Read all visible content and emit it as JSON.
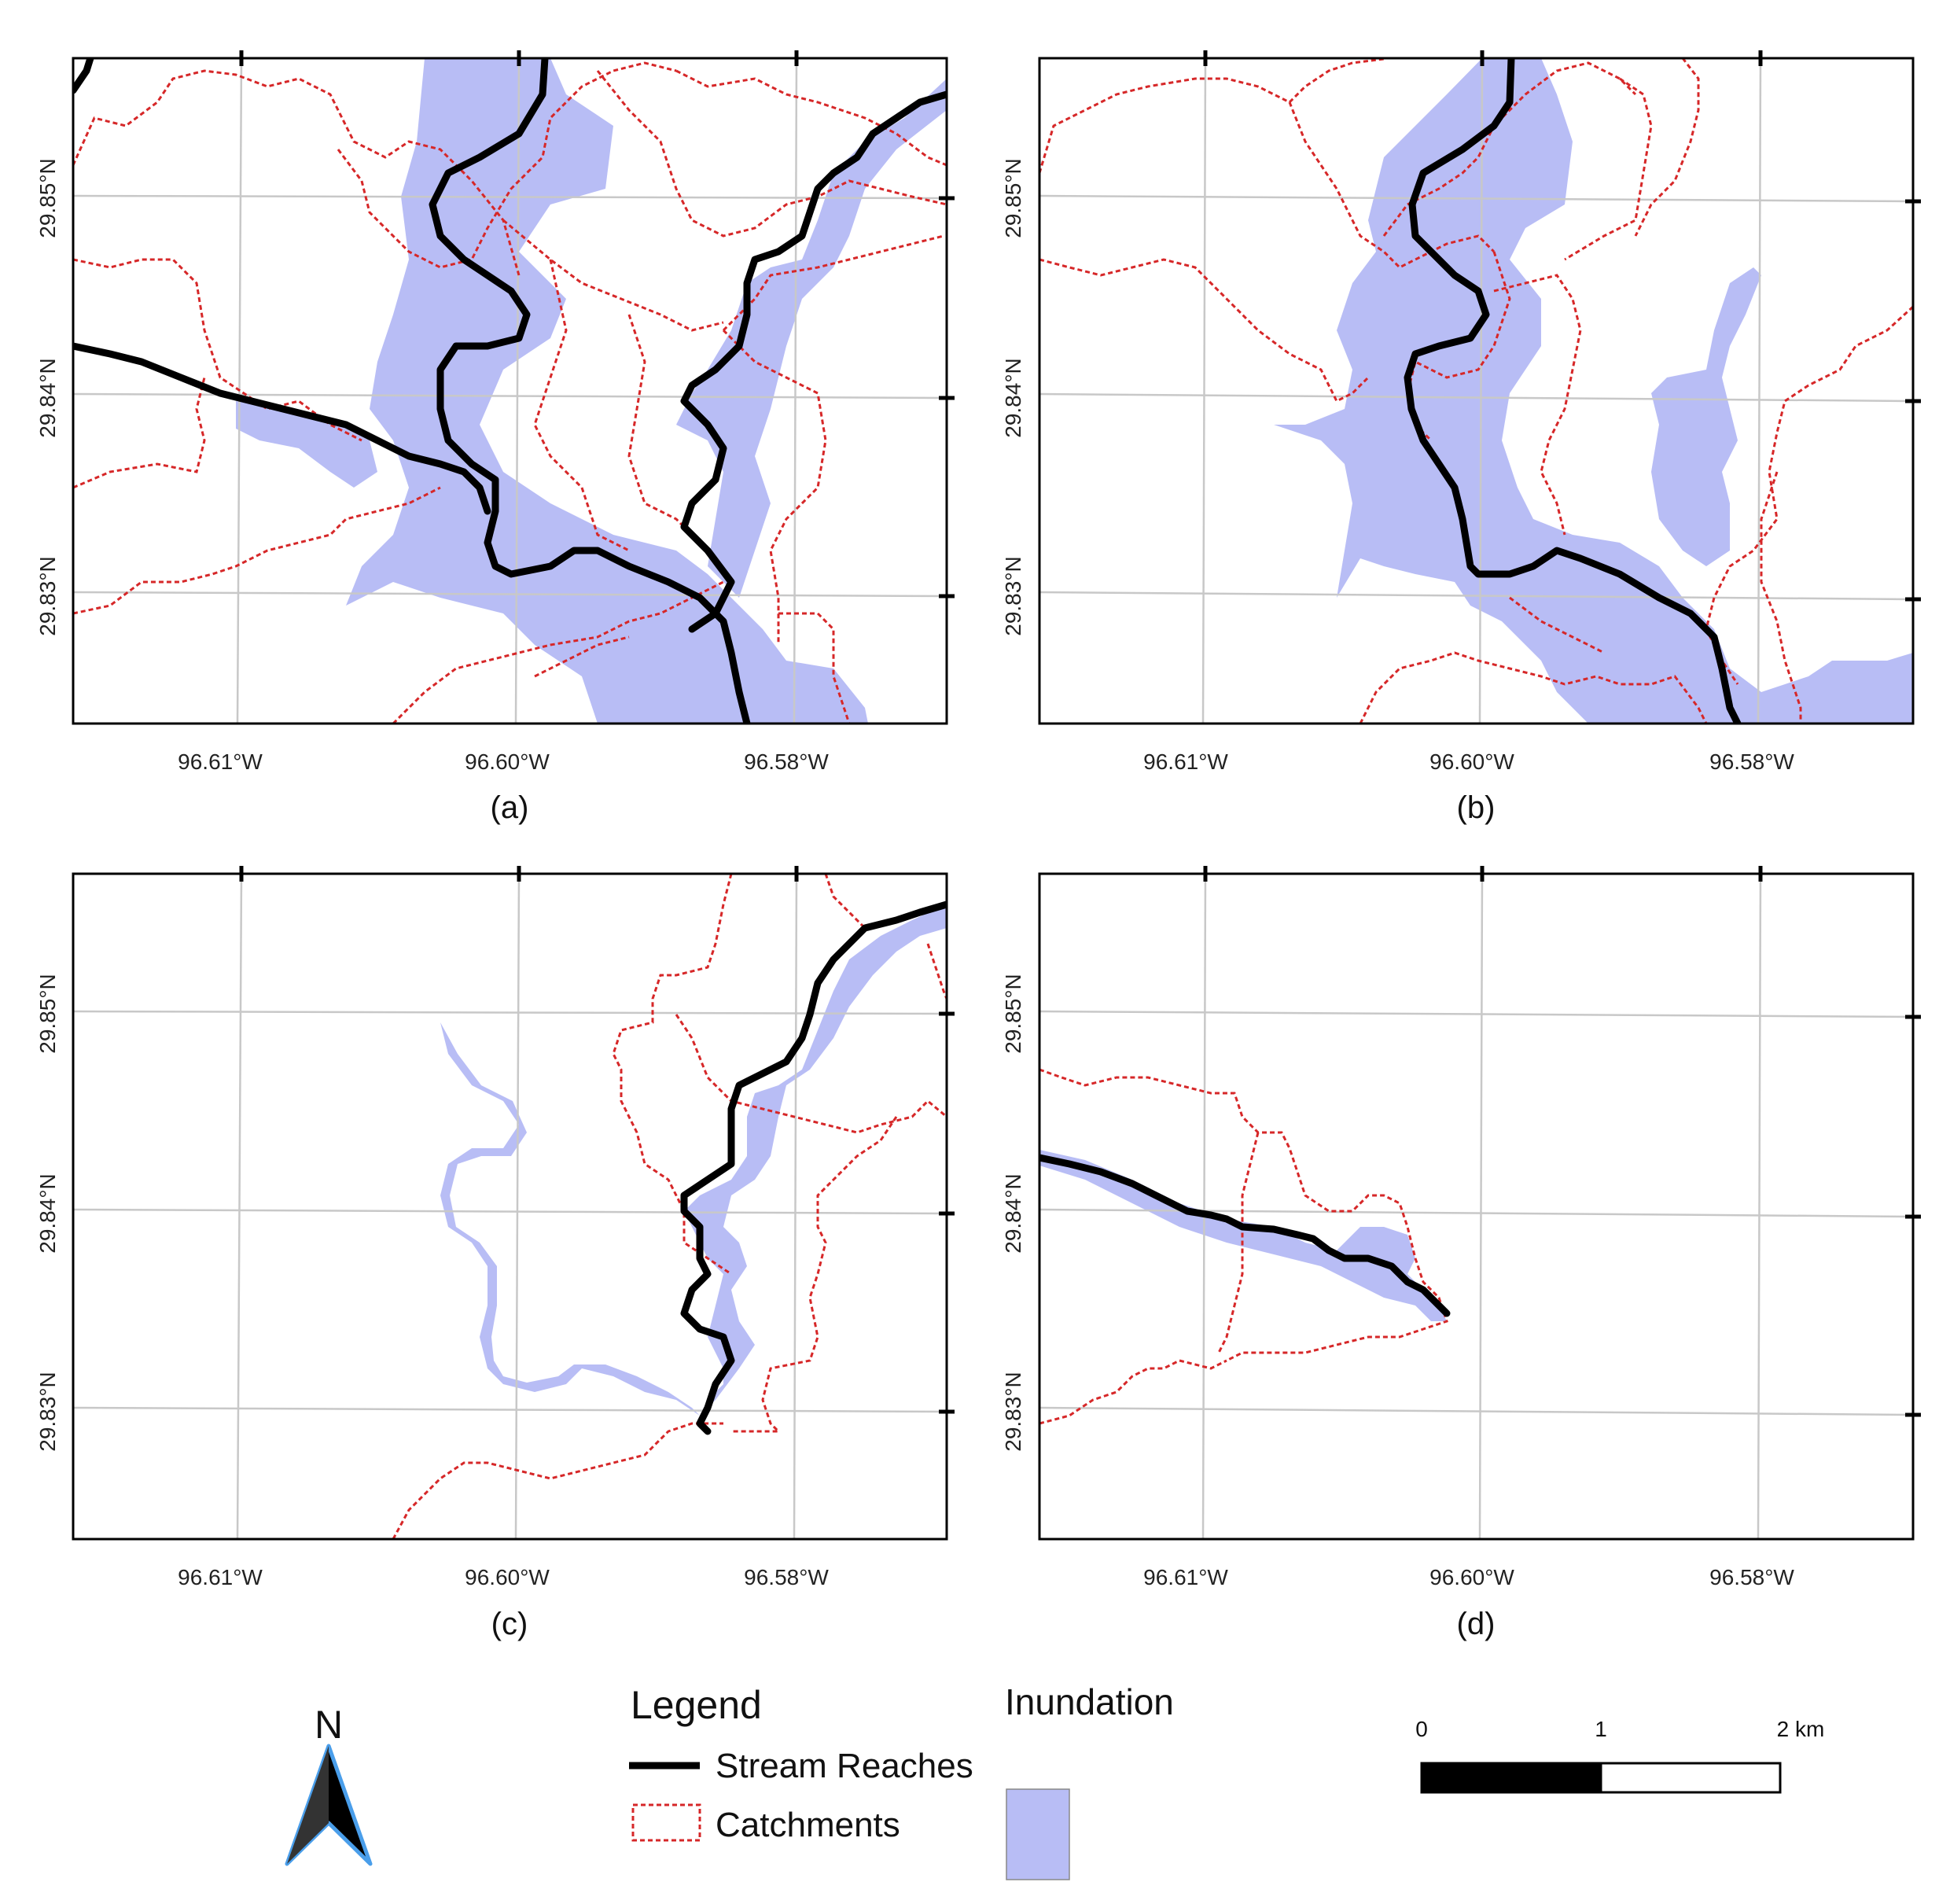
{
  "panels": [
    {
      "id": "a",
      "caption": "(a)",
      "inundation": true,
      "reaches": [
        "a1",
        "a2",
        "a3"
      ],
      "catchments": "full"
    },
    {
      "id": "b",
      "caption": "(b)",
      "inundation": true,
      "reaches": [
        "b1"
      ],
      "catchments": "partial"
    },
    {
      "id": "c",
      "caption": "(c)",
      "inundation": true,
      "reaches": [
        "c1"
      ],
      "catchments": "east"
    },
    {
      "id": "d",
      "caption": "(d)",
      "inundation": true,
      "reaches": [
        "d1"
      ],
      "catchments": "west"
    }
  ],
  "axes": {
    "x_ticks": [
      "96.61°W",
      "96.60°W",
      "96.58°W"
    ],
    "y_ticks": [
      "29.85°N",
      "29.84°N",
      "29.83°N"
    ]
  },
  "legend": {
    "title": "Legend",
    "stream_label": "Stream Reaches",
    "catchment_label": "Catchments",
    "inundation_title": "Inundation"
  },
  "north_arrow": {
    "label": "N"
  },
  "scale_bar": {
    "labels": [
      "0",
      "1",
      "2 km"
    ]
  },
  "colors": {
    "inundation": "#b8bdf5",
    "stream": "#000000",
    "catchment": "#d62728",
    "grid": "#c8c8c8",
    "arrow_outline": "#4a9eea"
  }
}
